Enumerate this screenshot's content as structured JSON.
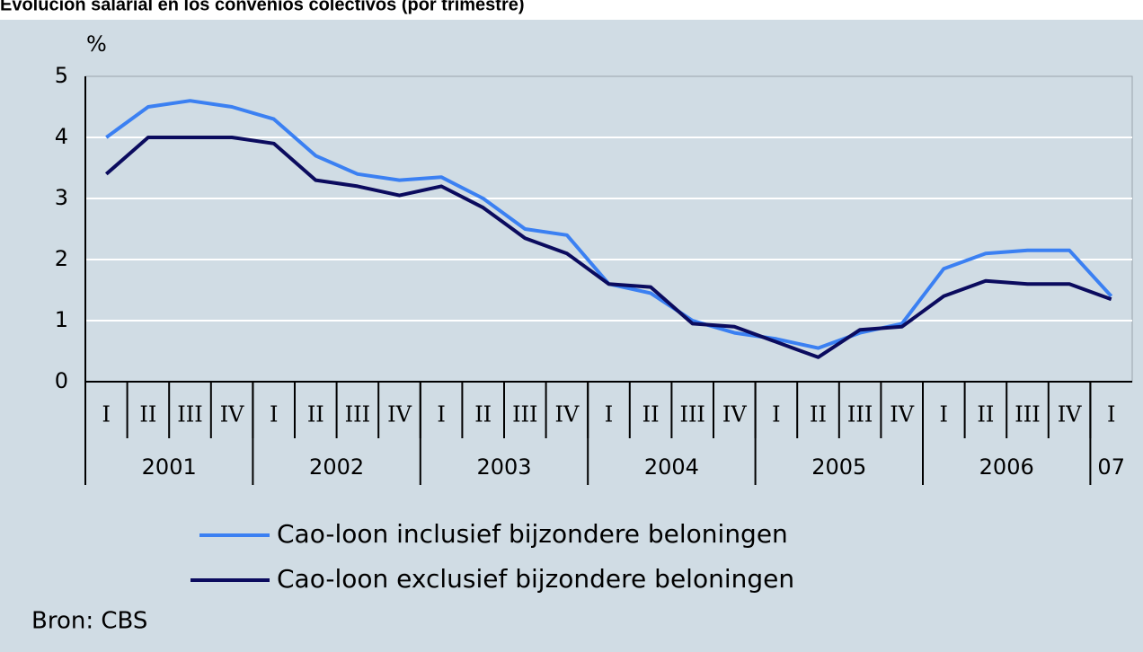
{
  "chart_data": {
    "type": "line",
    "title": "Evolución salarial en los convenios colectivos (por trimestre)",
    "y_label": "%",
    "source": "Bron: CBS",
    "categories": [
      "I",
      "II",
      "III",
      "IV",
      "I",
      "II",
      "III",
      "IV",
      "I",
      "II",
      "III",
      "IV",
      "I",
      "II",
      "III",
      "IV",
      "I",
      "II",
      "III",
      "IV",
      "I",
      "II",
      "III",
      "IV",
      "I"
    ],
    "category_groups": [
      {
        "label": "2001",
        "size": 4
      },
      {
        "label": "2002",
        "size": 4
      },
      {
        "label": "2003",
        "size": 4
      },
      {
        "label": "2004",
        "size": 4
      },
      {
        "label": "2005",
        "size": 4
      },
      {
        "label": "2006",
        "size": 4
      },
      {
        "label": "07",
        "size": 1
      }
    ],
    "series": [
      {
        "name": "Cao-loon inclusief bijzondere beloningen",
        "color": "#3b80f2",
        "values": [
          4.0,
          4.5,
          4.6,
          4.5,
          4.3,
          3.7,
          3.4,
          3.3,
          3.35,
          3.0,
          2.5,
          2.4,
          1.6,
          1.45,
          1.0,
          0.8,
          0.7,
          0.55,
          0.8,
          0.95,
          1.85,
          2.1,
          2.15,
          2.15,
          1.4
        ]
      },
      {
        "name": "Cao-loon exclusief bijzondere beloningen",
        "color": "#0b0b5e",
        "values": [
          3.4,
          4.0,
          4.0,
          4.0,
          3.9,
          3.3,
          3.2,
          3.05,
          3.2,
          2.85,
          2.35,
          2.1,
          1.6,
          1.55,
          0.95,
          0.9,
          0.65,
          0.4,
          0.85,
          0.9,
          1.4,
          1.65,
          1.6,
          1.6,
          1.35
        ]
      }
    ],
    "ylim": [
      0,
      5
    ],
    "yticks": [
      0,
      1,
      2,
      3,
      4,
      5
    ],
    "grid": true
  }
}
